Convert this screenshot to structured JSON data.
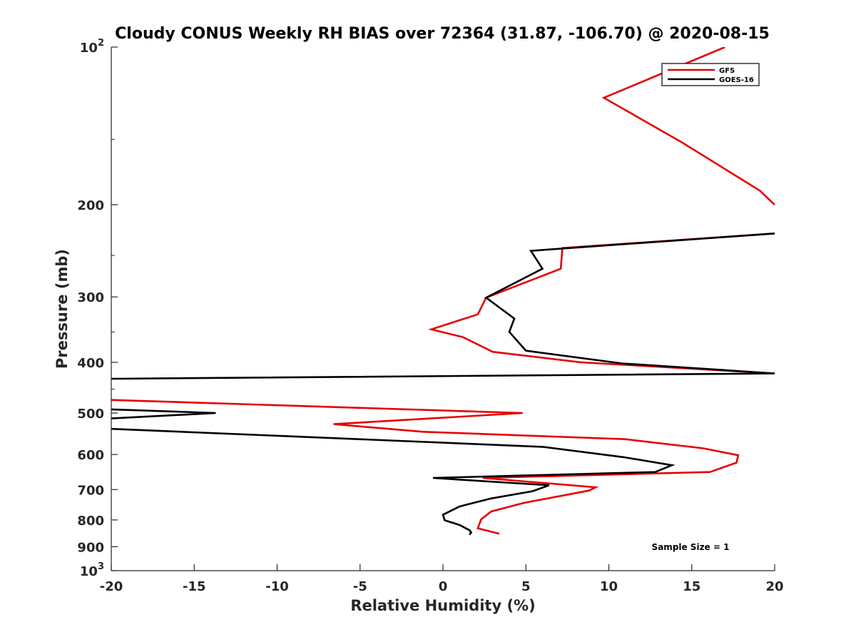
{
  "chart_data": {
    "type": "line",
    "title": "Cloudy CONUS Weekly RH BIAS over 72364 (31.87, -106.70) @ 2020-08-15",
    "xlabel": "Relative Humidity (%)",
    "ylabel": "Pressure (mb)",
    "xlim": [
      -20,
      20
    ],
    "ylim": [
      100,
      1000
    ],
    "y_scale": "log",
    "y_reversed": true,
    "grid": false,
    "legend_position": "top-right",
    "x_ticks": [
      "-20",
      "-15",
      "-10",
      "-5",
      "0",
      "5",
      "10",
      "15",
      "20"
    ],
    "y_ticks": [
      {
        "value": 100,
        "base": "10",
        "exp": "2"
      },
      {
        "value": 200,
        "base": "200",
        "exp": ""
      },
      {
        "value": 300,
        "base": "300",
        "exp": ""
      },
      {
        "value": 400,
        "base": "400",
        "exp": ""
      },
      {
        "value": 500,
        "base": "500",
        "exp": ""
      },
      {
        "value": 600,
        "base": "600",
        "exp": ""
      },
      {
        "value": 700,
        "base": "700",
        "exp": ""
      },
      {
        "value": 800,
        "base": "800",
        "exp": ""
      },
      {
        "value": 900,
        "base": "900",
        "exp": ""
      },
      {
        "value": 1000,
        "base": "10",
        "exp": "3"
      }
    ],
    "annotation": "Sample Size = 1",
    "series": [
      {
        "name": "GFS",
        "color": "#e60000",
        "points": [
          [
            17,
            100
          ],
          [
            9.7,
            125
          ],
          [
            14.4,
            152
          ],
          [
            19.1,
            188
          ],
          [
            20,
            200
          ],
          [
            null,
            null
          ],
          [
            20,
            227
          ],
          [
            7.2,
            242
          ],
          [
            7.1,
            265
          ],
          [
            2.6,
            301
          ],
          [
            2.1,
            324
          ],
          [
            -0.7,
            346
          ],
          [
            1.2,
            358
          ],
          [
            3.0,
            382
          ],
          [
            8.3,
            400
          ],
          [
            20,
            420
          ],
          [
            null,
            null
          ],
          [
            -20,
            472
          ],
          [
            4.8,
            500
          ],
          [
            -6.6,
            525
          ],
          [
            -1.2,
            543
          ],
          [
            11.0,
            561
          ],
          [
            15.7,
            584
          ],
          [
            17.8,
            602
          ],
          [
            17.7,
            622
          ],
          [
            16.1,
            648
          ],
          [
            2.4,
            665
          ],
          [
            9.2,
            693
          ],
          [
            8.8,
            703
          ],
          [
            4.9,
            742
          ],
          [
            2.9,
            771
          ],
          [
            2.3,
            798
          ],
          [
            2.1,
            830
          ],
          [
            3.4,
            850
          ]
        ]
      },
      {
        "name": "GOES-16",
        "color": "#000000",
        "points": [
          [
            20,
            227
          ],
          [
            5.3,
            245
          ],
          [
            6.0,
            265
          ],
          [
            2.6,
            301
          ],
          [
            4.3,
            330
          ],
          [
            4.0,
            350
          ],
          [
            5.0,
            380
          ],
          [
            10.8,
            402
          ],
          [
            20,
            420
          ],
          [
            -20,
            430
          ],
          [
            null,
            null
          ],
          [
            -20,
            492
          ],
          [
            -13.7,
            500
          ],
          [
            -20,
            512
          ],
          [
            null,
            null
          ],
          [
            -20,
            536
          ],
          [
            6.0,
            580
          ],
          [
            10.9,
            607
          ],
          [
            13.8,
            629
          ],
          [
            12.8,
            648
          ],
          [
            -0.6,
            665
          ],
          [
            6.4,
            687
          ],
          [
            5.4,
            705
          ],
          [
            2.9,
            728
          ],
          [
            1.0,
            754
          ],
          [
            0,
            782
          ],
          [
            0.1,
            801
          ],
          [
            1.0,
            818
          ],
          [
            1.6,
            837
          ],
          [
            1.7,
            845
          ],
          [
            1.6,
            854
          ]
        ]
      }
    ]
  }
}
